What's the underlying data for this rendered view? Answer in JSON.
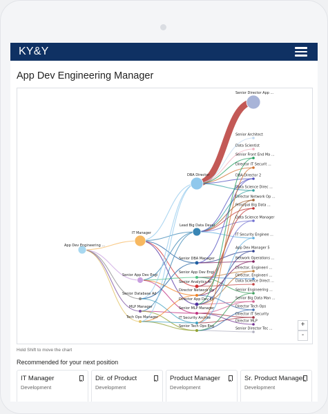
{
  "app": {
    "brand": "KY&Y"
  },
  "page": {
    "title": "App Dev Engineering Manager"
  },
  "chart": {
    "hint": "Hold Shift to move the chart",
    "zoom_in": "+",
    "zoom_out": "-",
    "nodes": [
      {
        "id": "root",
        "label": "App Dev Engineering ...",
        "color": "#a8d8f0"
      },
      {
        "id": "itm",
        "label": "IT Manager",
        "color": "#f7b860"
      },
      {
        "id": "sade",
        "label": "Senior App Dev Engi",
        "color": "#c9a0e0"
      },
      {
        "id": "sdb",
        "label": "Senior Database Ad",
        "color": "#8a8a8a"
      },
      {
        "id": "mlp",
        "label": "MLP Manager",
        "color": "#7a4fa0"
      },
      {
        "id": "tom",
        "label": "Tech Ops Manager",
        "color": "#e0c060"
      },
      {
        "id": "dbad",
        "label": "DBA Director",
        "color": "#90c8ec"
      },
      {
        "id": "lbd",
        "label": "Lead Big Data Devel",
        "color": "#3a86b4"
      },
      {
        "id": "sdbam",
        "label": "Senior DBA Manager",
        "color": "#1f5fa0"
      },
      {
        "id": "sad2",
        "label": "Senior App Dev Engi",
        "color": "#4ac080"
      },
      {
        "id": "saa",
        "label": "Senior Analytics Ar",
        "color": "#d43030"
      },
      {
        "id": "dnet",
        "label": "Director Network Op",
        "color": "#f08020"
      },
      {
        "id": "dad",
        "label": "Director App Dev En",
        "color": "#5030a0"
      },
      {
        "id": "smlp",
        "label": "Senior MLP Manager",
        "color": "#c03080"
      },
      {
        "id": "itsa",
        "label": "IT Security Archite",
        "color": "#40a0c0"
      },
      {
        "id": "stod",
        "label": "Senior Tech Ops Eng",
        "color": "#90a030"
      },
      {
        "id": "sda",
        "label": "Senior Director App ...",
        "color": "#a8b4d8"
      },
      {
        "id": "t1",
        "label": "Senior Architect",
        "color": "#c0d8f0"
      },
      {
        "id": "t2",
        "label": "Data Scientist",
        "color": "#f0b0c0"
      },
      {
        "id": "t3",
        "label": "Senior Front End Ma ...",
        "color": "#20a060"
      },
      {
        "id": "t4",
        "label": "Director IT Securit ...",
        "color": "#d07030"
      },
      {
        "id": "t5",
        "label": "DBA Director 2",
        "color": "#5050c0"
      },
      {
        "id": "t6",
        "label": "Data Science Direc ...",
        "color": "#30a0a0"
      },
      {
        "id": "t7",
        "label": "Director Network Op ...",
        "color": "#a06030"
      },
      {
        "id": "t8",
        "label": "Principal Big Data ...",
        "color": "#c03030"
      },
      {
        "id": "t9",
        "label": "Data Science Manager",
        "color": "#7070d0"
      },
      {
        "id": "t10",
        "label": "IT Security Enginee ...",
        "color": "#60b0e0"
      },
      {
        "id": "t11",
        "label": "App Dev Manager 5",
        "color": "#304090"
      },
      {
        "id": "t12",
        "label": "Network Operations ...",
        "color": "#802060"
      },
      {
        "id": "t13",
        "label": "Director, Engineeri ...",
        "color": "#c08040"
      },
      {
        "id": "t14",
        "label": "Director, Engineeri ...",
        "color": "#5090d0"
      },
      {
        "id": "t15",
        "label": "Data Science Direct ...",
        "color": "#c04040"
      },
      {
        "id": "t16",
        "label": "Senior Engineering ...",
        "color": "#40a060"
      },
      {
        "id": "t17",
        "label": "Senior Big Data Man ...",
        "color": "#d06090"
      },
      {
        "id": "t18",
        "label": "Director Tech Ops",
        "color": "#4070b0"
      },
      {
        "id": "t19",
        "label": "Director IT Security",
        "color": "#a03040"
      },
      {
        "id": "t20",
        "label": "Director MLP",
        "color": "#703090"
      },
      {
        "id": "t21",
        "label": "Senior Director Tec ...",
        "color": "#b0b0c0"
      }
    ],
    "links": [
      [
        "root",
        "itm"
      ],
      [
        "root",
        "sade"
      ],
      [
        "root",
        "sdb"
      ],
      [
        "root",
        "mlp"
      ],
      [
        "root",
        "tom"
      ],
      [
        "itm",
        "dbad"
      ],
      [
        "itm",
        "lbd"
      ],
      [
        "itm",
        "sdbam"
      ],
      [
        "itm",
        "saa"
      ],
      [
        "itm",
        "dad"
      ],
      [
        "sade",
        "lbd"
      ],
      [
        "sade",
        "sad2"
      ],
      [
        "sade",
        "dnet"
      ],
      [
        "sade",
        "smlp"
      ],
      [
        "sdb",
        "dbad"
      ],
      [
        "sdb",
        "sdbam"
      ],
      [
        "sdb",
        "itsa"
      ],
      [
        "mlp",
        "lbd"
      ],
      [
        "mlp",
        "smlp"
      ],
      [
        "mlp",
        "stod"
      ],
      [
        "tom",
        "dnet"
      ],
      [
        "tom",
        "stod"
      ],
      [
        "tom",
        "itsa"
      ],
      [
        "tom",
        "dbad"
      ],
      [
        "dbad",
        "sda"
      ],
      [
        "dbad",
        "t1"
      ],
      [
        "dbad",
        "t2"
      ],
      [
        "dbad",
        "t3"
      ],
      [
        "dbad",
        "t4"
      ],
      [
        "dbad",
        "t5"
      ],
      [
        "dbad",
        "t6"
      ],
      [
        "lbd",
        "t7"
      ],
      [
        "lbd",
        "t8"
      ],
      [
        "lbd",
        "t9"
      ],
      [
        "lbd",
        "t10"
      ],
      [
        "lbd",
        "t6"
      ],
      [
        "lbd",
        "t5"
      ],
      [
        "sdbam",
        "t11"
      ],
      [
        "sdbam",
        "t12"
      ],
      [
        "sdbam",
        "t5"
      ],
      [
        "sad2",
        "t13"
      ],
      [
        "sad2",
        "t14"
      ],
      [
        "sad2",
        "t16"
      ],
      [
        "saa",
        "t15"
      ],
      [
        "saa",
        "t9"
      ],
      [
        "saa",
        "t8"
      ],
      [
        "dnet",
        "t12"
      ],
      [
        "dnet",
        "t7"
      ],
      [
        "dnet",
        "t18"
      ],
      [
        "dad",
        "t13"
      ],
      [
        "dad",
        "t17"
      ],
      [
        "dad",
        "t11"
      ],
      [
        "dad",
        "t3"
      ],
      [
        "smlp",
        "t20"
      ],
      [
        "smlp",
        "t19"
      ],
      [
        "smlp",
        "t17"
      ],
      [
        "itsa",
        "t19"
      ],
      [
        "itsa",
        "t10"
      ],
      [
        "itsa",
        "t4"
      ],
      [
        "stod",
        "t21"
      ],
      [
        "stod",
        "t18"
      ],
      [
        "stod",
        "t16"
      ]
    ]
  },
  "recommended": {
    "heading": "Recommended for your next position",
    "cards": [
      {
        "title": "IT Manager",
        "subtitle": "Development"
      },
      {
        "title": "Dir. of Product",
        "subtitle": "Development"
      },
      {
        "title": "Product Manager",
        "subtitle": "Development"
      },
      {
        "title": "Sr. Product Manager",
        "subtitle": "Development"
      }
    ]
  }
}
